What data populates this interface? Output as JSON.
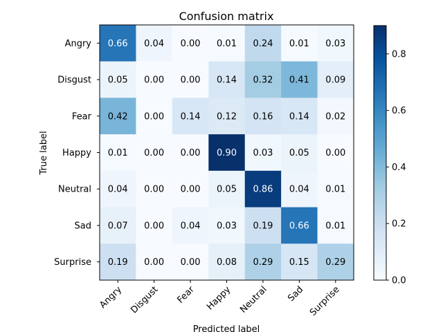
{
  "chart_data": {
    "type": "heatmap",
    "title": "Confusion matrix",
    "xlabel": "Predicted label",
    "ylabel": "True label",
    "x_categories": [
      "Angry",
      "Disgust",
      "Fear",
      "Happy",
      "Neutral",
      "Sad",
      "Surprise"
    ],
    "y_categories": [
      "Angry",
      "Disgust",
      "Fear",
      "Happy",
      "Neutral",
      "Sad",
      "Surprise"
    ],
    "values": [
      [
        0.66,
        0.04,
        0.0,
        0.01,
        0.24,
        0.01,
        0.03
      ],
      [
        0.05,
        0.0,
        0.0,
        0.14,
        0.32,
        0.41,
        0.09
      ],
      [
        0.42,
        0.0,
        0.14,
        0.12,
        0.16,
        0.14,
        0.02
      ],
      [
        0.01,
        0.0,
        0.0,
        0.9,
        0.03,
        0.05,
        0.0
      ],
      [
        0.04,
        0.0,
        0.0,
        0.05,
        0.86,
        0.04,
        0.01
      ],
      [
        0.07,
        0.0,
        0.04,
        0.03,
        0.19,
        0.66,
        0.01
      ],
      [
        0.19,
        0.0,
        0.0,
        0.08,
        0.29,
        0.15,
        0.29
      ]
    ],
    "value_labels": [
      [
        "0.66",
        "0.04",
        "0.00",
        "0.01",
        "0.24",
        "0.01",
        "0.03"
      ],
      [
        "0.05",
        "0.00",
        "0.00",
        "0.14",
        "0.32",
        "0.41",
        "0.09"
      ],
      [
        "0.42",
        "0.00",
        "0.14",
        "0.12",
        "0.16",
        "0.14",
        "0.02"
      ],
      [
        "0.01",
        "0.00",
        "0.00",
        "0.90",
        "0.03",
        "0.05",
        "0.00"
      ],
      [
        "0.04",
        "0.00",
        "0.00",
        "0.05",
        "0.86",
        "0.04",
        "0.01"
      ],
      [
        "0.07",
        "0.00",
        "0.04",
        "0.03",
        "0.19",
        "0.66",
        "0.01"
      ],
      [
        "0.19",
        "0.00",
        "0.00",
        "0.08",
        "0.29",
        "0.15",
        "0.29"
      ]
    ],
    "colormap": "Blues",
    "colorbar": {
      "range": [
        0.0,
        0.9
      ],
      "ticks": [
        0.0,
        0.2,
        0.4,
        0.6,
        0.8
      ],
      "tick_labels": [
        "0.0",
        "0.2",
        "0.4",
        "0.6",
        "0.8"
      ]
    },
    "text_color_light": "#ffffff",
    "text_color_dark": "#000000",
    "x_tick_rotation": 45
  }
}
